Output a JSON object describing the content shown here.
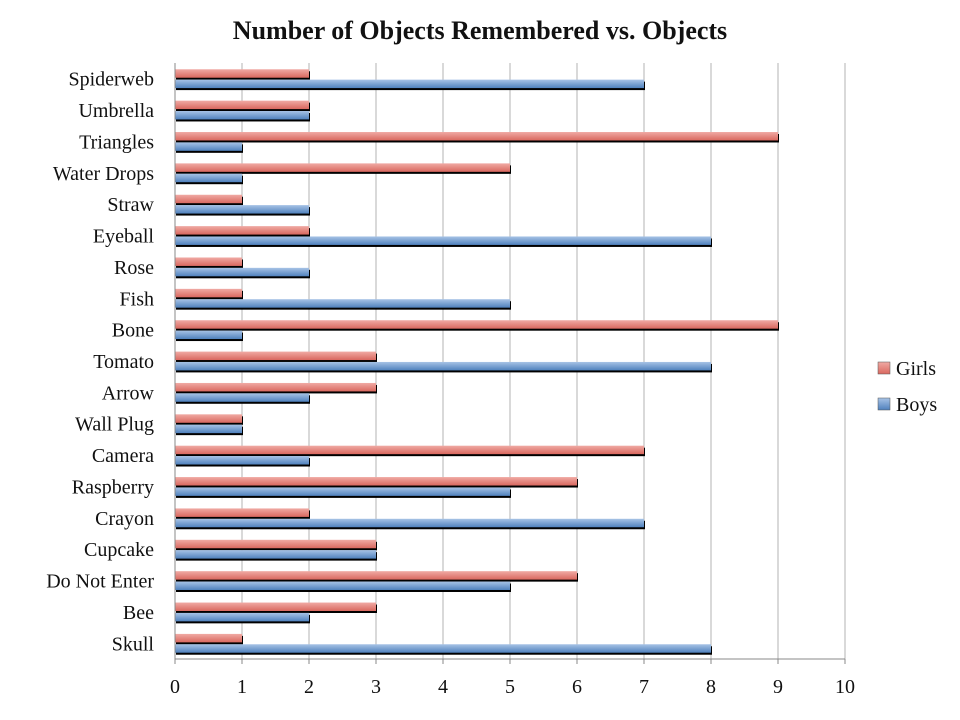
{
  "chart_data": {
    "type": "bar",
    "orientation": "horizontal",
    "title": "Number of Objects Remembered vs. Objects",
    "xlabel": "",
    "ylabel": "",
    "xlim": [
      0,
      10
    ],
    "x_ticks": [
      "0",
      "1",
      "2",
      "3",
      "4",
      "5",
      "6",
      "7",
      "8",
      "9",
      "10"
    ],
    "grid": "vertical",
    "legend_position": "right",
    "categories": [
      "Spiderweb",
      "Umbrella",
      "Triangles",
      "Water Drops",
      "Straw",
      "Eyeball",
      "Rose",
      "Fish",
      "Bone",
      "Tomato",
      "Arrow",
      "Wall Plug",
      "Camera",
      "Raspberry",
      "Crayon",
      "Cupcake",
      "Do Not Enter",
      "Bee",
      "Skull"
    ],
    "series": [
      {
        "name": "Girls",
        "color": "#d9685f",
        "values": [
          2,
          2,
          9,
          5,
          1,
          2,
          1,
          1,
          9,
          3,
          3,
          1,
          7,
          6,
          2,
          3,
          6,
          3,
          1
        ]
      },
      {
        "name": "Boys",
        "color": "#4f81bd",
        "values": [
          7,
          2,
          1,
          1,
          2,
          8,
          2,
          5,
          1,
          8,
          2,
          1,
          2,
          5,
          7,
          3,
          5,
          2,
          8
        ]
      }
    ]
  }
}
